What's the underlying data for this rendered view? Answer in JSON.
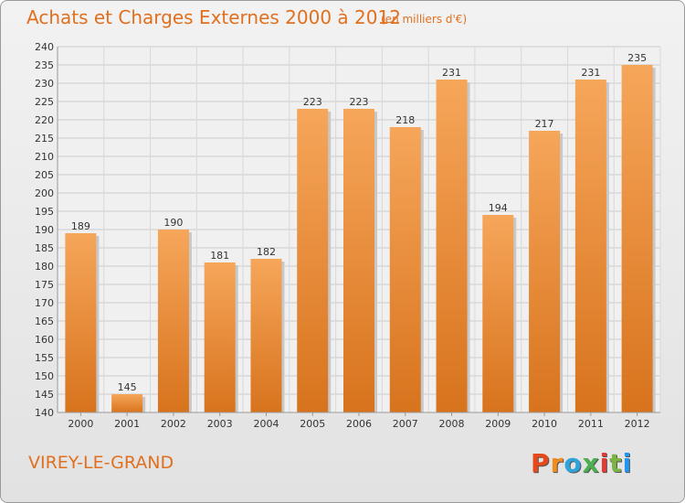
{
  "header": {
    "title": "Achats et Charges Externes 2000 à 2012",
    "subtitle": "(en milliers d'€)"
  },
  "footer": {
    "commune": "VIREY-LE-GRAND",
    "logo_letters": [
      "P",
      "r",
      "o",
      "x",
      "i",
      "t",
      "i"
    ],
    "logo_colors": [
      "#e64a19",
      "#f28c1e",
      "#2ea3dc",
      "#4caf50",
      "#e53935",
      "#7cb342",
      "#2196f3"
    ]
  },
  "colors": {
    "bar": "#f28c28",
    "bar_light": "#f5a55a",
    "bar_dark": "#d9731a",
    "text": "#333333",
    "accent": "#e0701f"
  },
  "chart_data": {
    "type": "bar",
    "categories": [
      "2000",
      "2001",
      "2002",
      "2003",
      "2004",
      "2005",
      "2006",
      "2007",
      "2008",
      "2009",
      "2010",
      "2011",
      "2012"
    ],
    "values": [
      189,
      145,
      190,
      181,
      182,
      223,
      223,
      218,
      231,
      194,
      217,
      231,
      235
    ],
    "ylim": [
      140,
      240
    ],
    "yticks": [
      140,
      145,
      150,
      155,
      160,
      165,
      170,
      175,
      180,
      185,
      190,
      195,
      200,
      205,
      210,
      215,
      220,
      225,
      230,
      235,
      240
    ],
    "grid": true,
    "title": "Achats et Charges Externes 2000 à 2012",
    "xlabel": "",
    "ylabel": ""
  }
}
